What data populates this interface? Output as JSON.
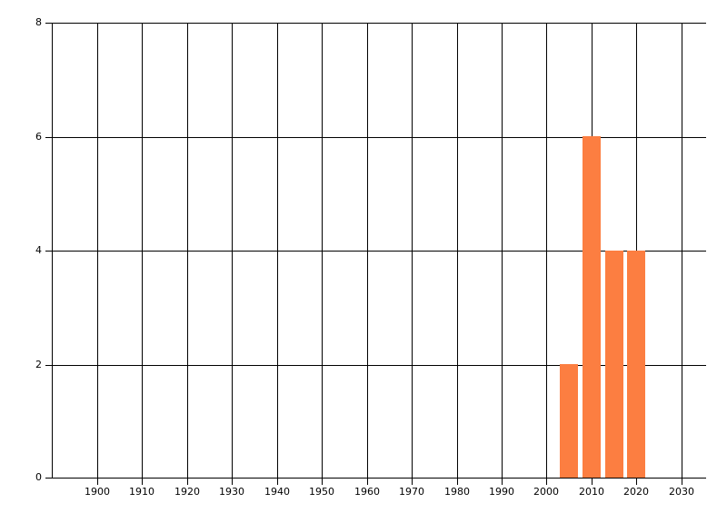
{
  "chart_data": {
    "type": "bar",
    "title": "",
    "xlabel": "",
    "ylabel": "",
    "categories": [
      2005,
      2010,
      2015,
      2020
    ],
    "values": [
      2,
      6,
      4,
      4
    ],
    "bar_width_years": 4,
    "xlim": [
      1888.5,
      2035.5
    ],
    "ylim": [
      0,
      8
    ],
    "x_gridlines": [
      1890,
      1900,
      1910,
      1920,
      1930,
      1940,
      1950,
      1960,
      1970,
      1980,
      1990,
      2000,
      2010,
      2020,
      2030
    ],
    "x_tick_labels": [
      "1900",
      "1910",
      "1920",
      "1930",
      "1940",
      "1950",
      "1960",
      "1970",
      "1980",
      "1990",
      "2000",
      "2010",
      "2020",
      "2030"
    ],
    "y_ticks": [
      0,
      2,
      4,
      6,
      8
    ],
    "y_tick_labels": [
      "0",
      "2",
      "4",
      "6",
      "8"
    ],
    "grid": true,
    "legend": false,
    "colors": {
      "bar": "#fc7e41",
      "grid": "#000000",
      "text": "#000000",
      "background": "#ffffff"
    }
  }
}
